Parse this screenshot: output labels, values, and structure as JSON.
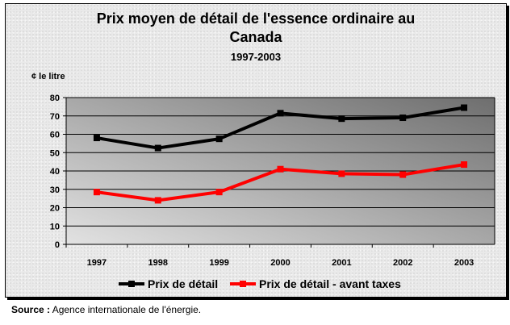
{
  "chart_data": {
    "type": "line",
    "title_lines": [
      "Prix moyen de détail de l'essence ordinaire au",
      "Canada"
    ],
    "subtitle": "1997-2003",
    "ylabel": "¢ le litre",
    "xlabel": "",
    "categories": [
      "1997",
      "1998",
      "1999",
      "2000",
      "2001",
      "2002",
      "2003"
    ],
    "ylim": [
      0,
      80
    ],
    "yticks": [
      0,
      10,
      20,
      30,
      40,
      50,
      60,
      70,
      80
    ],
    "grid": true,
    "legend_position": "bottom",
    "series": [
      {
        "name": "Prix de détail",
        "color": "#000000",
        "values": [
          58,
          52.5,
          57.5,
          71.5,
          68.5,
          69,
          74.5
        ]
      },
      {
        "name": "Prix de détail - avant taxes",
        "color": "#ff0000",
        "values": [
          28.5,
          24,
          28.5,
          41,
          38.5,
          38,
          43.5
        ]
      }
    ]
  },
  "source": {
    "label": "Source :",
    "text": "Agence internationale de l'énergie."
  },
  "colors": {
    "plot_gradient_start": "#e2e2e2",
    "plot_gradient_end": "#6e6e6e"
  }
}
